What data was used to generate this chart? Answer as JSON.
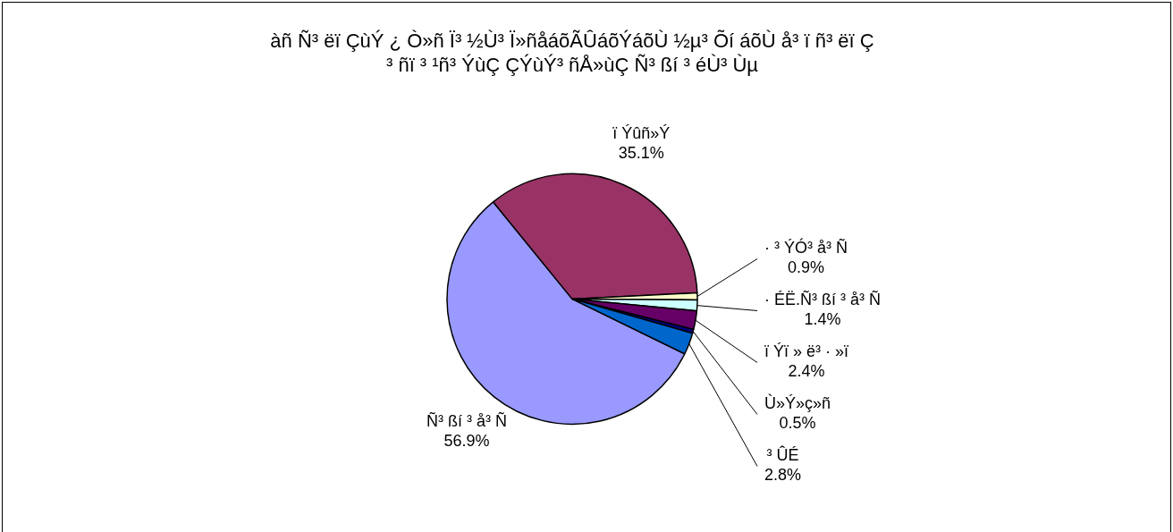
{
  "chart_data": {
    "type": "pie",
    "title": "àñ Ñ³ ëï ÇùÝ ¿ Ò»ñ Ï³ ½Ù³ Ï»ñåáõÃÛáõÝáõÙ ½µ³ Õí áõÙ å³ ï ñ³ ëï Ç ³ ñï ³ ¹ñ³ ÝùÇ ÇÝùÝ³ ñÅ»ùÇ Ñ³ ßí ³ éÙ³ Ùµ",
    "categories": [
      "Ñ³ ßí ³ å³ Ñ",
      "ï Ýûñ»Ý",
      "· ³ ÝÓ³ å³ Ñ",
      "· ÉË.Ñ³ ßí ³ å³ Ñ",
      "ï Ýï » ë³ · »ï",
      "Ù»Ý»ç»ñ",
      "³ ÛÉ"
    ],
    "values": [
      56.9,
      35.1,
      0.9,
      1.4,
      2.4,
      0.5,
      2.8
    ],
    "value_labels": [
      "56.9%",
      "35.1%",
      "0.9%",
      "1.4%",
      "2.4%",
      "0.5%",
      "2.8%"
    ],
    "colors": [
      "#9999ff",
      "#993366",
      "#ffffcc",
      "#ccffff",
      "#660066",
      "#000080",
      "#0066cc"
    ],
    "legend": false
  }
}
